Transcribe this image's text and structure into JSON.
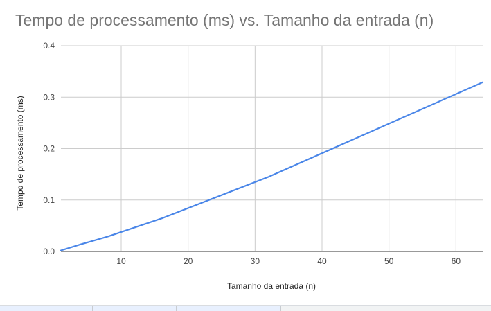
{
  "chart_data": {
    "type": "line",
    "title": "Tempo de processamento (ms) vs. Tamanho da entrada (n)",
    "xlabel": "Tamanho da entrada (n)",
    "ylabel": "Tempo de processamento (ms)",
    "xlim": [
      1,
      64
    ],
    "ylim": [
      0,
      0.4
    ],
    "xticks": [
      10,
      20,
      30,
      40,
      50,
      60
    ],
    "xtick_labels": [
      "10",
      "20",
      "30",
      "40",
      "50",
      "60"
    ],
    "yticks": [
      0,
      0.1,
      0.2,
      0.3,
      0.4
    ],
    "ytick_labels": [
      "0.0",
      "0.1",
      "0.2",
      "0.3",
      "0.4"
    ],
    "grid": true,
    "series": [
      {
        "color": "#4a86e8",
        "x": [
          1,
          2,
          4,
          8,
          16,
          32,
          64
        ],
        "y": [
          0.002,
          0.006,
          0.014,
          0.029,
          0.064,
          0.145,
          0.329
        ]
      }
    ]
  }
}
